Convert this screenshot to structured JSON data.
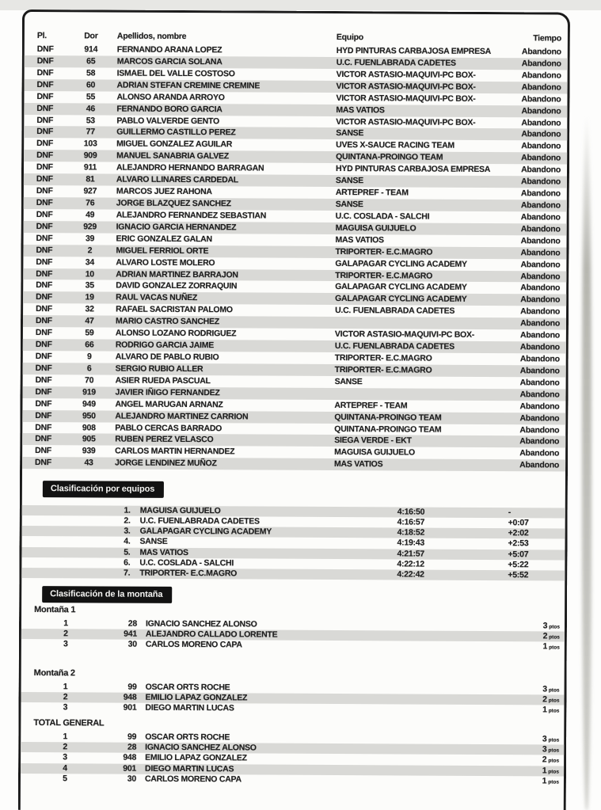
{
  "header": {
    "pl": "Pl.",
    "dor": "Dor",
    "name": "Apellidos, nombre",
    "team": "Equipo",
    "time": "Tiempo"
  },
  "dnf_rows": [
    {
      "pl": "DNF",
      "dor": "914",
      "name": "FERNANDO ARANA LOPEZ",
      "team": "HYD PINTURAS CARBAJOSA EMPRESA",
      "time": "Abandono"
    },
    {
      "pl": "DNF",
      "dor": "65",
      "name": "MARCOS GARCIA SOLANA",
      "team": "U.C. FUENLABRADA CADETES",
      "time": "Abandono"
    },
    {
      "pl": "DNF",
      "dor": "58",
      "name": "ISMAEL DEL VALLE COSTOSO",
      "team": "VICTOR ASTASIO-MAQUIVI-PC BOX-",
      "time": "Abandono"
    },
    {
      "pl": "DNF",
      "dor": "60",
      "name": "ADRIAN STEFAN CREMINE CREMINE",
      "team": "VICTOR ASTASIO-MAQUIVI-PC BOX-",
      "time": "Abandono"
    },
    {
      "pl": "DNF",
      "dor": "55",
      "name": "ALONSO ARANDA ARROYO",
      "team": "VICTOR ASTASIO-MAQUIVI-PC BOX-",
      "time": "Abandono"
    },
    {
      "pl": "DNF",
      "dor": "46",
      "name": "FERNANDO BORO GARCIA",
      "team": "MAS VATIOS",
      "time": "Abandono"
    },
    {
      "pl": "DNF",
      "dor": "53",
      "name": "PABLO VALVERDE GENTO",
      "team": "VICTOR ASTASIO-MAQUIVI-PC BOX-",
      "time": "Abandono"
    },
    {
      "pl": "DNF",
      "dor": "77",
      "name": "GUILLERMO CASTILLO PEREZ",
      "team": "SANSE",
      "time": "Abandono"
    },
    {
      "pl": "DNF",
      "dor": "103",
      "name": "MIGUEL GONZALEZ AGUILAR",
      "team": "UVES X-SAUCE RACING TEAM",
      "time": "Abandono"
    },
    {
      "pl": "DNF",
      "dor": "909",
      "name": "MANUEL SANABRIA GALVEZ",
      "team": "QUINTANA-PROINGO TEAM",
      "time": "Abandono"
    },
    {
      "pl": "DNF",
      "dor": "911",
      "name": "ALEJANDRO HERNANDO BARRAGAN",
      "team": "HYD PINTURAS CARBAJOSA EMPRESA",
      "time": "Abandono"
    },
    {
      "pl": "DNF",
      "dor": "81",
      "name": "ALVARO LLINARES CARDEDAL",
      "team": "SANSE",
      "time": "Abandono"
    },
    {
      "pl": "DNF",
      "dor": "927",
      "name": "MARCOS JUEZ RAHONA",
      "team": "ARTEPREF - TEAM",
      "time": "Abandono"
    },
    {
      "pl": "DNF",
      "dor": "76",
      "name": "JORGE BLAZQUEZ SANCHEZ",
      "team": "SANSE",
      "time": "Abandono"
    },
    {
      "pl": "DNF",
      "dor": "49",
      "name": "ALEJANDRO FERNANDEZ SEBASTIAN",
      "team": "U.C. COSLADA - SALCHI",
      "time": "Abandono"
    },
    {
      "pl": "DNF",
      "dor": "929",
      "name": "IGNACIO GARCIA HERNANDEZ",
      "team": "MAGUISA GUIJUELO",
      "time": "Abandono"
    },
    {
      "pl": "DNF",
      "dor": "39",
      "name": "ERIC GONZALEZ GALAN",
      "team": "MAS VATIOS",
      "time": "Abandono"
    },
    {
      "pl": "DNF",
      "dor": "2",
      "name": "MIGUEL FERRIOL ORTE",
      "team": "TRIPORTER- E.C.MAGRO",
      "time": "Abandono"
    },
    {
      "pl": "DNF",
      "dor": "34",
      "name": "ALVARO LOSTE MOLERO",
      "team": "GALAPAGAR CYCLING ACADEMY",
      "time": "Abandono"
    },
    {
      "pl": "DNF",
      "dor": "10",
      "name": "ADRIAN MARTINEZ BARRAJON",
      "team": "TRIPORTER- E.C.MAGRO",
      "time": "Abandono"
    },
    {
      "pl": "DNF",
      "dor": "35",
      "name": "DAVID GONZALEZ ZORRAQUIN",
      "team": "GALAPAGAR CYCLING ACADEMY",
      "time": "Abandono"
    },
    {
      "pl": "DNF",
      "dor": "19",
      "name": "RAUL VACAS NUÑEZ",
      "team": "GALAPAGAR CYCLING ACADEMY",
      "time": "Abandono"
    },
    {
      "pl": "DNF",
      "dor": "32",
      "name": "RAFAEL SACRISTAN PALOMO",
      "team": "U.C. FUENLABRADA CADETES",
      "time": "Abandono"
    },
    {
      "pl": "DNF",
      "dor": "47",
      "name": "MARIO CASTRO SANCHEZ",
      "team": "",
      "time": "Abandono"
    },
    {
      "pl": "DNF",
      "dor": "59",
      "name": "ALONSO LOZANO RODRIGUEZ",
      "team": "VICTOR ASTASIO-MAQUIVI-PC BOX-",
      "time": "Abandono"
    },
    {
      "pl": "DNF",
      "dor": "66",
      "name": "RODRIGO GARCIA JAIME",
      "team": "U.C. FUENLABRADA CADETES",
      "time": "Abandono"
    },
    {
      "pl": "DNF",
      "dor": "9",
      "name": "ALVARO DE PABLO RUBIO",
      "team": "TRIPORTER- E.C.MAGRO",
      "time": "Abandono"
    },
    {
      "pl": "DNF",
      "dor": "6",
      "name": "SERGIO RUBIO ALLER",
      "team": "TRIPORTER- E.C.MAGRO",
      "time": "Abandono"
    },
    {
      "pl": "DNF",
      "dor": "70",
      "name": "ASIER RUEDA PASCUAL",
      "team": "SANSE",
      "time": "Abandono"
    },
    {
      "pl": "DNF",
      "dor": "919",
      "name": "JAVIER IÑIGO FERNANDEZ",
      "team": "",
      "time": "Abandono"
    },
    {
      "pl": "DNF",
      "dor": "949",
      "name": "ANGEL MARUGAN ARNANZ",
      "team": "ARTEPREF - TEAM",
      "time": "Abandono"
    },
    {
      "pl": "DNF",
      "dor": "950",
      "name": "ALEJANDRO MARTINEZ CARRION",
      "team": "QUINTANA-PROINGO TEAM",
      "time": "Abandono"
    },
    {
      "pl": "DNF",
      "dor": "908",
      "name": "PABLO CERCAS BARRADO",
      "team": "QUINTANA-PROINGO TEAM",
      "time": "Abandono"
    },
    {
      "pl": "DNF",
      "dor": "905",
      "name": "RUBEN PEREZ VELASCO",
      "team": "SIEGA VERDE - EKT",
      "time": "Abandono"
    },
    {
      "pl": "DNF",
      "dor": "939",
      "name": "CARLOS MARTIN HERNANDEZ",
      "team": "MAGUISA GUIJUELO",
      "time": "Abandono"
    },
    {
      "pl": "DNF",
      "dor": "43",
      "name": "JORGE LENDINEZ MUÑOZ",
      "team": "MAS VATIOS",
      "time": "Abandono"
    }
  ],
  "teams": {
    "title": "Clasificación por equipos",
    "rows": [
      {
        "pos": "1.",
        "team": "MAGUISA GUIJUELO",
        "time": "4:16:50",
        "gap": "-"
      },
      {
        "pos": "2.",
        "team": "U.C. FUENLABRADA CADETES",
        "time": "4:16:57",
        "gap": "+0:07"
      },
      {
        "pos": "3.",
        "team": "GALAPAGAR CYCLING ACADEMY",
        "time": "4:18:52",
        "gap": "+2:02"
      },
      {
        "pos": "4.",
        "team": "SANSE",
        "time": "4:19:43",
        "gap": "+2:53"
      },
      {
        "pos": "5.",
        "team": "MAS VATIOS",
        "time": "4:21:57",
        "gap": "+5:07"
      },
      {
        "pos": "6.",
        "team": "U.C. COSLADA - SALCHI",
        "time": "4:22:12",
        "gap": "+5:22"
      },
      {
        "pos": "7.",
        "team": "TRIPORTER- E.C.MAGRO",
        "time": "4:22:42",
        "gap": "+5:52"
      }
    ]
  },
  "mountain": {
    "title": "Clasificación de la montaña",
    "points_unit": "ptos",
    "sections": [
      {
        "label": "Montaña 1",
        "rows": [
          {
            "pos": "1",
            "dor": "28",
            "name": "IGNACIO SANCHEZ ALONSO",
            "pts": "3"
          },
          {
            "pos": "2",
            "dor": "941",
            "name": "ALEJANDRO CALLADO LORENTE",
            "pts": "2"
          },
          {
            "pos": "3",
            "dor": "30",
            "name": "CARLOS MORENO CAPA",
            "pts": "1"
          }
        ]
      },
      {
        "label": "Montaña 2",
        "rows": [
          {
            "pos": "1",
            "dor": "99",
            "name": "OSCAR ORTS ROCHE",
            "pts": "3"
          },
          {
            "pos": "2",
            "dor": "948",
            "name": "EMILIO LAPAZ GONZALEZ",
            "pts": "2"
          },
          {
            "pos": "3",
            "dor": "901",
            "name": "DIEGO MARTIN LUCAS",
            "pts": "1"
          }
        ]
      },
      {
        "label": "TOTAL GENERAL",
        "rows": [
          {
            "pos": "1",
            "dor": "99",
            "name": "OSCAR ORTS ROCHE",
            "pts": "3"
          },
          {
            "pos": "2",
            "dor": "28",
            "name": "IGNACIO SANCHEZ ALONSO",
            "pts": "3"
          },
          {
            "pos": "3",
            "dor": "948",
            "name": "EMILIO LAPAZ GONZALEZ",
            "pts": "2"
          },
          {
            "pos": "4",
            "dor": "901",
            "name": "DIEGO MARTIN LUCAS",
            "pts": "1"
          },
          {
            "pos": "5",
            "dor": "30",
            "name": "CARLOS MORENO CAPA",
            "pts": "1"
          }
        ]
      }
    ]
  }
}
